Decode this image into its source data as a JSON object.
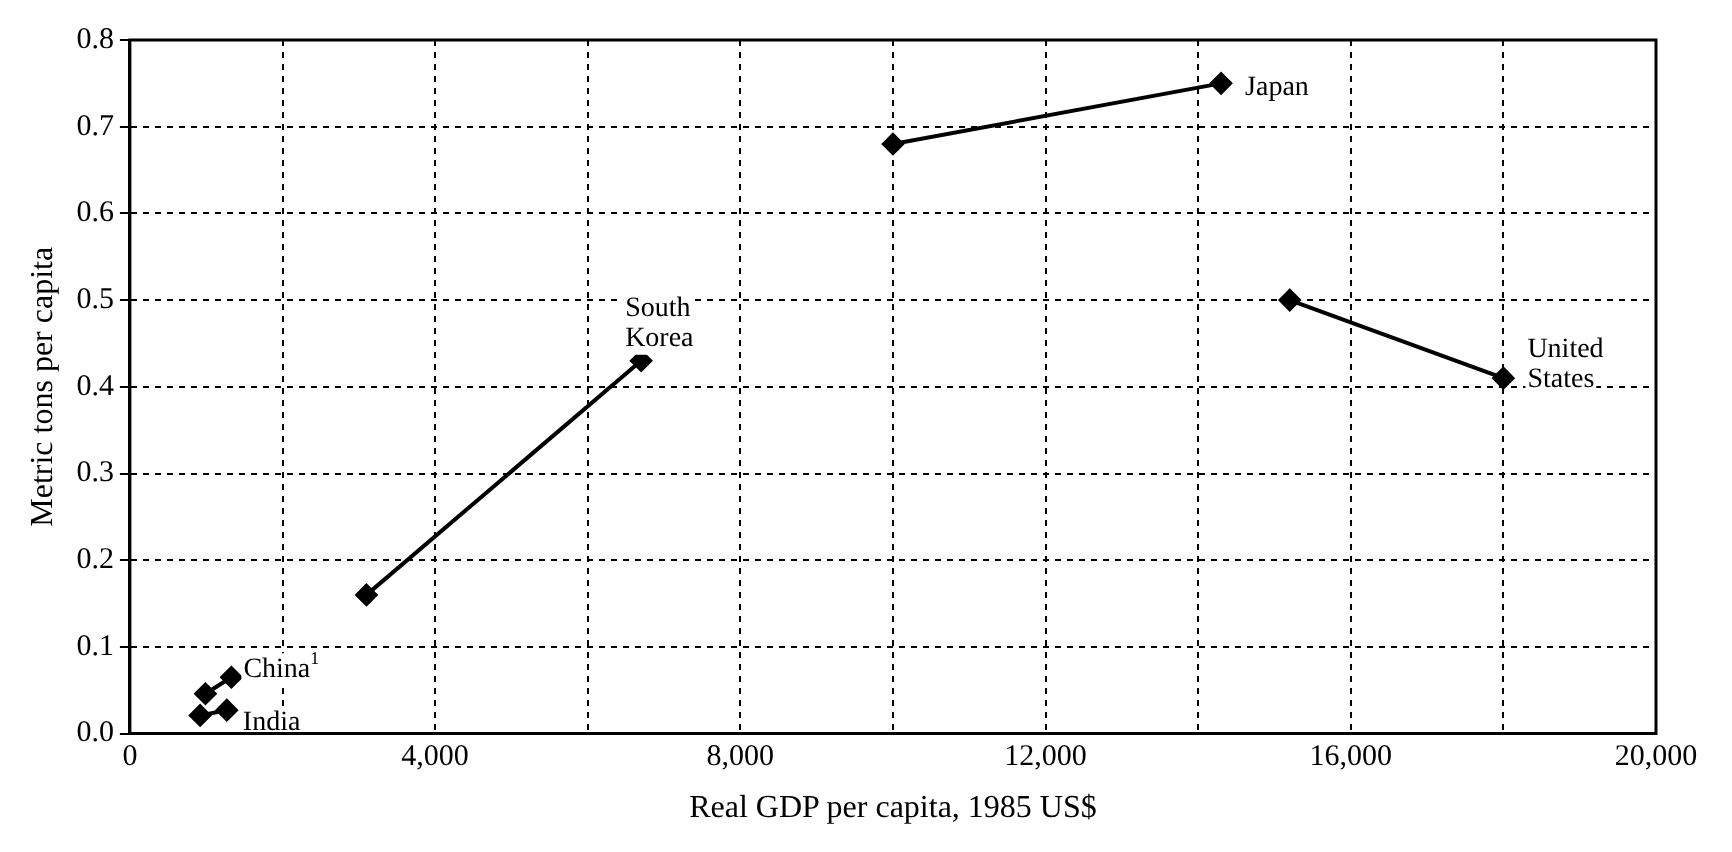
{
  "chart_data": {
    "type": "line",
    "xlabel": "Real GDP per capita, 1985 US$",
    "ylabel": "Metric tons per capita",
    "xlim": [
      0,
      20000
    ],
    "xticks": [
      0,
      {
        "value": 2000,
        "label": null
      },
      {
        "value": 4000,
        "label": "4,000"
      },
      {
        "value": 6000,
        "label": null
      },
      {
        "value": 8000,
        "label": "8,000"
      },
      {
        "value": 10000,
        "label": null
      },
      {
        "value": 12000,
        "label": "12,000"
      },
      {
        "value": 14000,
        "label": null
      },
      {
        "value": 16000,
        "label": "16,000"
      },
      {
        "value": 18000,
        "label": null
      },
      {
        "value": 20000,
        "label": "20,000"
      }
    ],
    "ylim": [
      0,
      0.8
    ],
    "yticks": [
      {
        "value": 0,
        "label": "0.0"
      },
      0.1,
      0.2,
      0.3,
      0.4,
      0.5,
      0.6,
      0.7,
      0.8
    ],
    "grid": true,
    "legend": false,
    "marker": "diamond",
    "line_style": "solid",
    "series": [
      {
        "name": "China$^{1}$",
        "color": "#000000",
        "x": [
          990,
          1330
        ],
        "values": [
          0.046,
          0.065
        ]
      },
      {
        "name": "India",
        "color": "#000000",
        "x": [
          920,
          1270
        ],
        "values": [
          0.021,
          0.027
        ]
      },
      {
        "name": "South Korea",
        "color": "#000000",
        "x": [
          3100,
          6700
        ],
        "values": [
          0.16,
          0.43
        ]
      },
      {
        "name": "Japan",
        "color": "#000000",
        "x": [
          10000,
          14300
        ],
        "values": [
          0.68,
          0.75
        ]
      },
      {
        "name": "United States",
        "color": "#000000",
        "x": [
          15200,
          18000
        ],
        "values": [
          0.5,
          0.41
        ]
      }
    ]
  }
}
